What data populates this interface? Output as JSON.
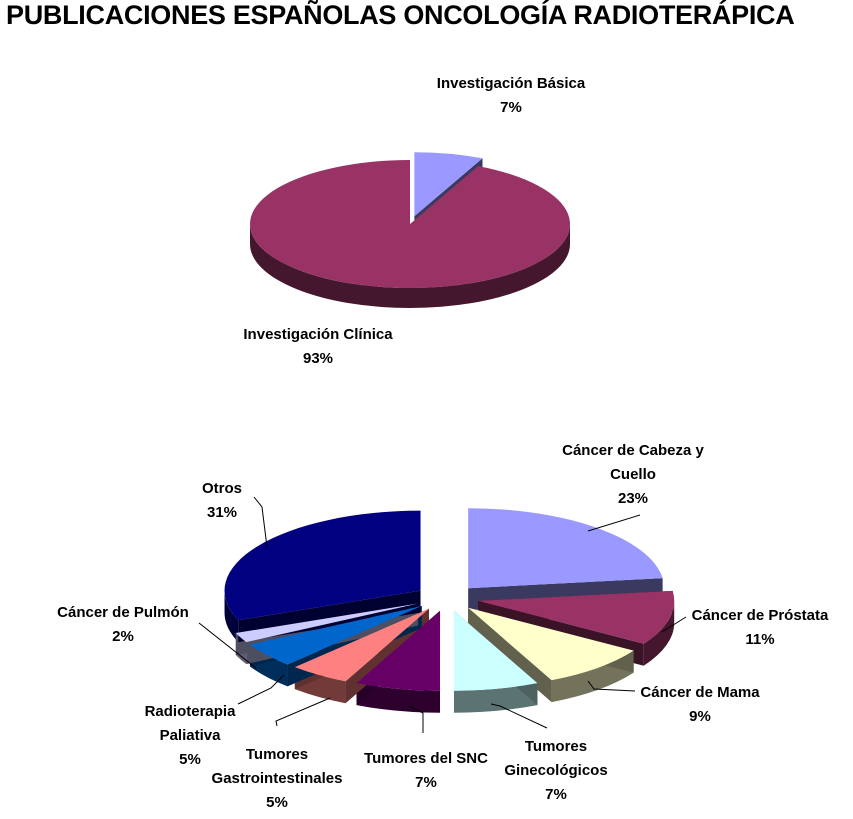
{
  "title": "PUBLICACIONES ESPAÑOLAS ONCOLOGÍA RADIOTERÁPICA",
  "chart_data": [
    {
      "type": "pie",
      "title": "",
      "slices": [
        {
          "label": "Investigación Básica",
          "value": 7,
          "value_label": "7%",
          "color": "#9999FF",
          "exploded": true
        },
        {
          "label": "Investigación Clínica",
          "value": 93,
          "value_label": "93%",
          "color": "#993366",
          "exploded": false
        }
      ],
      "three_d": true,
      "legend": "none"
    },
    {
      "type": "pie",
      "title": "",
      "slices": [
        {
          "label": "Cáncer de Cabeza y Cuello",
          "label_lines": [
            "Cáncer de Cabeza y",
            "Cuello"
          ],
          "value": 23,
          "value_label": "23%",
          "color": "#9999FF"
        },
        {
          "label": "Cáncer de Próstata",
          "label_lines": [
            "Cáncer de Próstata"
          ],
          "value": 11,
          "value_label": "11%",
          "color": "#993366"
        },
        {
          "label": "Cáncer de Mama",
          "label_lines": [
            "Cáncer de Mama"
          ],
          "value": 9,
          "value_label": "9%",
          "color": "#FFFFCC"
        },
        {
          "label": "Tumores Ginecológicos",
          "label_lines": [
            "Tumores",
            "Ginecológicos"
          ],
          "value": 7,
          "value_label": "7%",
          "color": "#CCFFFF"
        },
        {
          "label": "Tumores del SNC",
          "label_lines": [
            "Tumores del SNC"
          ],
          "value": 7,
          "value_label": "7%",
          "color": "#660066"
        },
        {
          "label": "Tumores Gastrointestinales",
          "label_lines": [
            "Tumores",
            "Gastrointestinales"
          ],
          "value": 5,
          "value_label": "5%",
          "color": "#FF8080"
        },
        {
          "label": "Radioterapia Paliativa",
          "label_lines": [
            "Radioterapia",
            "Paliativa"
          ],
          "value": 5,
          "value_label": "5%",
          "color": "#0066CC"
        },
        {
          "label": "Cáncer de Pulmón",
          "label_lines": [
            "Cáncer de Pulmón"
          ],
          "value": 2,
          "value_label": "2%",
          "color": "#CCCCFF"
        },
        {
          "label": "Otros",
          "label_lines": [
            "Otros"
          ],
          "value": 31,
          "value_label": "31%",
          "color": "#000080"
        }
      ],
      "three_d": true,
      "exploded": true,
      "legend": "none"
    }
  ]
}
